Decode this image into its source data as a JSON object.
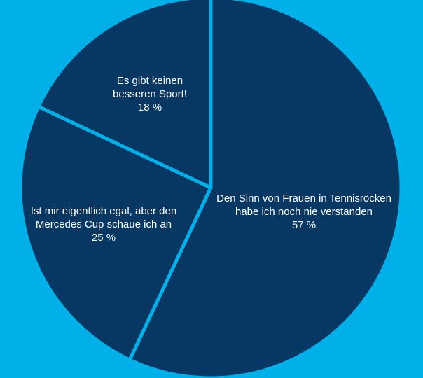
{
  "chart_data": {
    "type": "pie",
    "slices": [
      {
        "label": [
          "Den Sinn von Frauen in Tennisröcken",
          "habe ich noch nie verstanden"
        ],
        "value": 57,
        "value_label": "57 %"
      },
      {
        "label": [
          "Ist mir eigentlich egal, aber den",
          "Mercedes Cup schaue ich an"
        ],
        "value": 25,
        "value_label": "25 %"
      },
      {
        "label": [
          "Es gibt keinen",
          "besseren Sport!"
        ],
        "value": 18,
        "value_label": "18 %"
      }
    ]
  },
  "colors": {
    "background": "#00b0e8",
    "slice_fill": "#073763",
    "slice_separator": "#00b0e8",
    "label_text": "#ffffff"
  }
}
